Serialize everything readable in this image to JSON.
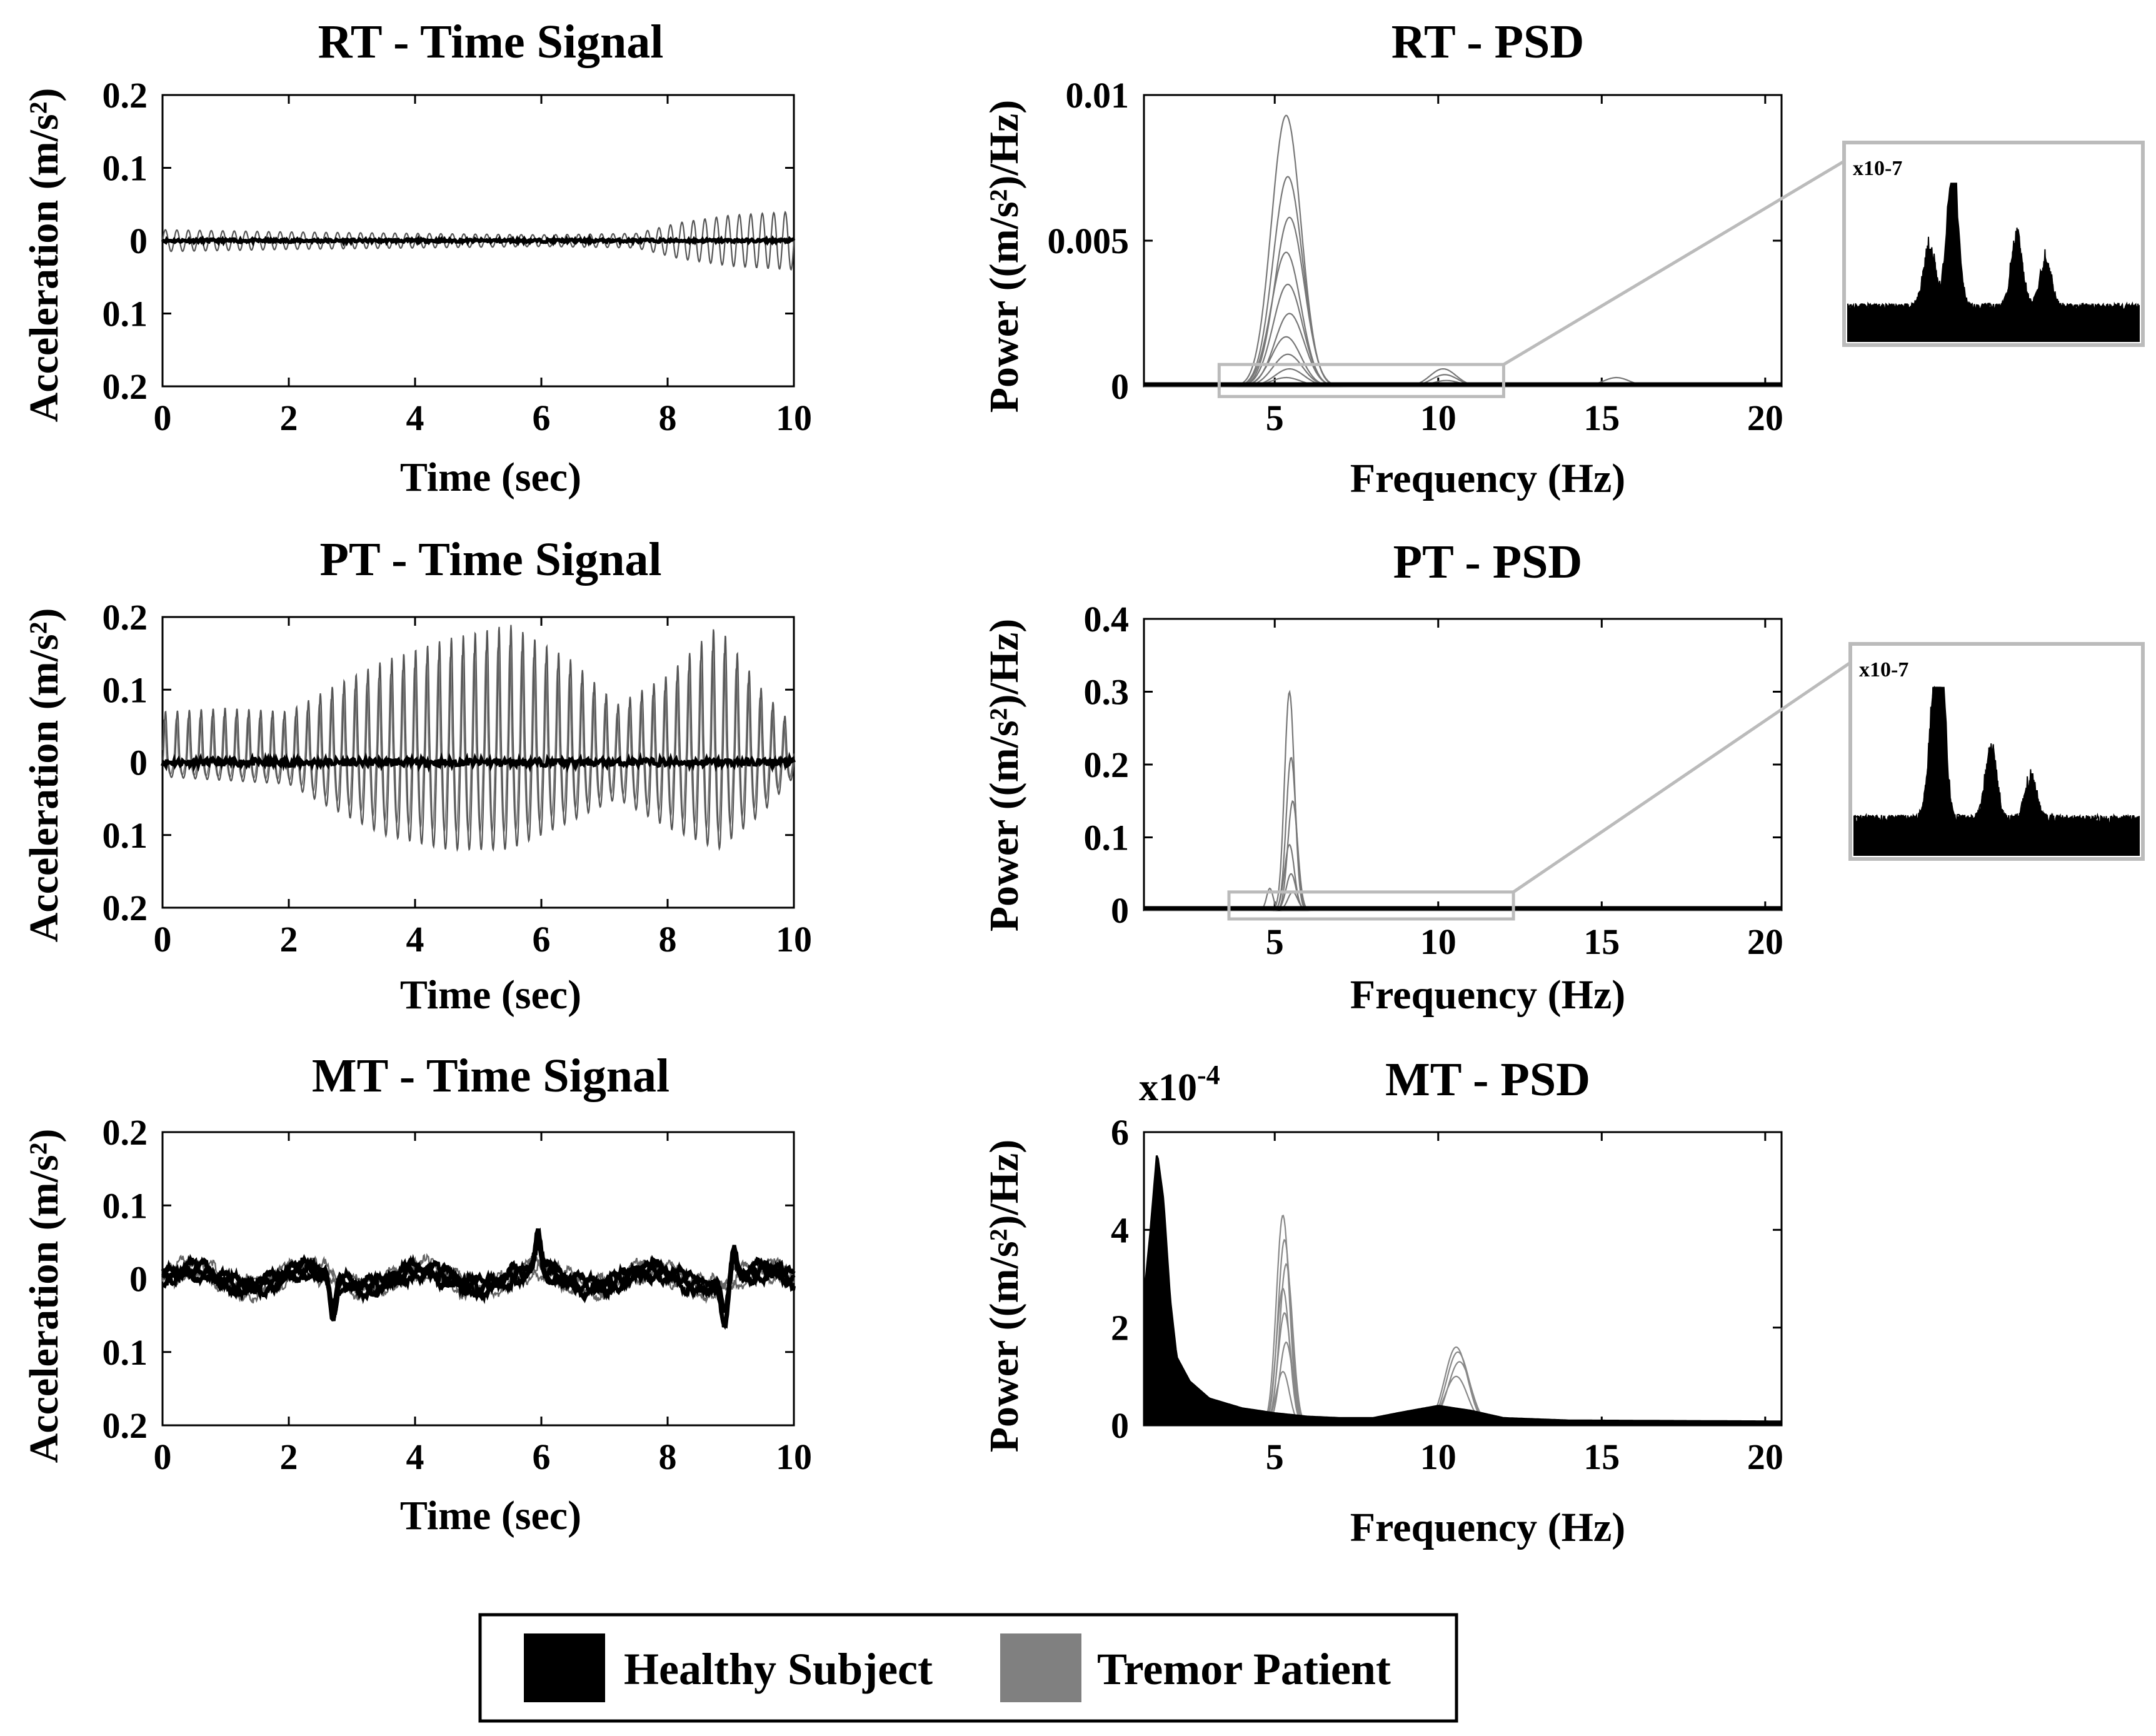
{
  "chart_data": [
    {
      "id": "rt_time",
      "type": "line",
      "title": "RT - Time Signal",
      "xlabel": "Time (sec)",
      "ylabel": "Acceleration (m/s²)",
      "xlim": [
        0,
        10
      ],
      "ylim": [
        -0.2,
        0.2
      ],
      "xticks": [
        0,
        2,
        4,
        6,
        8,
        10
      ],
      "xtick_labels": [
        "0",
        "2",
        "4",
        "6",
        "8",
        "10"
      ],
      "yticks": [
        0.2,
        0.1,
        0,
        -0.1,
        -0.2
      ],
      "ytick_labels": [
        "0.2",
        "0.1",
        "0",
        "0.1",
        "0.2"
      ],
      "series": [
        {
          "name": "Tremor Patient",
          "color": "#555555",
          "shape": "sine",
          "freq_hz": 5.5,
          "envelope_t": [
            0,
            2,
            4,
            6,
            7.5,
            8.2,
            9,
            10
          ],
          "envelope_amp": [
            0.015,
            0.012,
            0.01,
            0.008,
            0.01,
            0.025,
            0.035,
            0.04
          ]
        },
        {
          "name": "Healthy Subject",
          "color": "#000000",
          "shape": "flat",
          "amp": 0.002
        }
      ]
    },
    {
      "id": "rt_psd",
      "type": "line",
      "title": "RT - PSD",
      "xlabel": "Frequency (Hz)",
      "ylabel": "Power ((m/s²)/Hz)",
      "xlim": [
        1,
        20.5
      ],
      "ylim": [
        0,
        0.01
      ],
      "xticks": [
        5,
        10,
        15,
        20
      ],
      "xtick_labels": [
        "5",
        "10",
        "15",
        "20"
      ],
      "yticks": [
        0.01,
        0.005,
        0
      ],
      "ytick_labels": [
        "0.01",
        "0.005",
        "0"
      ],
      "series": [
        {
          "name": "Tremor Patient",
          "color": "#777777",
          "shape": "peaks",
          "peaks": [
            {
              "f": 5.4,
              "w": 0.45,
              "amps": [
                0.0093,
                0.0072,
                0.0058,
                0.0046,
                0.0035,
                0.0025,
                0.0017,
                0.0011,
                0.0006,
                0.0003
              ]
            },
            {
              "f": 10.2,
              "w": 0.4,
              "amps": [
                0.0006,
                0.0004,
                0.0002
              ]
            },
            {
              "f": 15.5,
              "w": 0.4,
              "amps": [
                0.0003
              ]
            }
          ]
        },
        {
          "name": "Healthy Subject",
          "color": "#000000",
          "shape": "baseline"
        }
      ],
      "zoom_box": {
        "x": [
          3.3,
          12
        ],
        "y": [
          -0.00035,
          0.00075
        ]
      },
      "inset": {
        "multiplier": "x10-7"
      }
    },
    {
      "id": "pt_time",
      "type": "line",
      "title": "PT - Time Signal",
      "xlabel": "Time (sec)",
      "ylabel": "Acceleration (m/s²)",
      "xlim": [
        0,
        10
      ],
      "ylim": [
        -0.2,
        0.2
      ],
      "xticks": [
        0,
        2,
        4,
        6,
        8,
        10
      ],
      "xtick_labels": [
        "0",
        "2",
        "4",
        "6",
        "8",
        "10"
      ],
      "yticks": [
        0.2,
        0.1,
        0,
        -0.1,
        -0.2
      ],
      "ytick_labels": [
        "0.2",
        "0.1",
        "0",
        "0.1",
        "0.2"
      ],
      "series": [
        {
          "name": "Tremor Patient",
          "color": "#555555",
          "shape": "spiky",
          "freq_hz": 5.3,
          "envelope_t": [
            0,
            1,
            2,
            2.6,
            3.5,
            4.5,
            5.5,
            6.5,
            7.2,
            8,
            8.8,
            9.5,
            10
          ],
          "envelope_pos": [
            0.07,
            0.075,
            0.07,
            0.1,
            0.14,
            0.17,
            0.19,
            0.14,
            0.08,
            0.12,
            0.19,
            0.1,
            0.05
          ],
          "envelope_neg": [
            0.02,
            0.025,
            0.03,
            0.06,
            0.1,
            0.12,
            0.12,
            0.08,
            0.05,
            0.09,
            0.12,
            0.07,
            0.02
          ]
        },
        {
          "name": "Healthy Subject",
          "color": "#000000",
          "shape": "flat",
          "amp": 0.005
        }
      ]
    },
    {
      "id": "pt_psd",
      "type": "line",
      "title": "PT - PSD",
      "xlabel": "Frequency (Hz)",
      "ylabel": "Power ((m/s²)/Hz)",
      "xlim": [
        1,
        20.5
      ],
      "ylim": [
        0,
        0.4
      ],
      "xticks": [
        5,
        10,
        15,
        20
      ],
      "xtick_labels": [
        "5",
        "10",
        "15",
        "20"
      ],
      "yticks": [
        0.4,
        0.3,
        0.2,
        0.1,
        0
      ],
      "ytick_labels": [
        "0.4",
        "0.3",
        "0.2",
        "0.1",
        "0"
      ],
      "series": [
        {
          "name": "Tremor Patient",
          "color": "#777777",
          "shape": "peaks",
          "peaks": [
            {
              "f": 5.5,
              "w": 0.15,
              "amps": [
                0.3,
                0.21,
                0.15,
                0.09,
                0.05,
                0.025
              ]
            },
            {
              "f": 4.9,
              "w": 0.1,
              "amps": [
                0.03
              ]
            }
          ]
        },
        {
          "name": "Healthy Subject",
          "color": "#000000",
          "shape": "baseline"
        }
      ],
      "zoom_box": {
        "x": [
          3.6,
          12.3
        ],
        "y": [
          -0.012,
          0.025
        ]
      },
      "inset": {
        "multiplier": "x10-7"
      }
    },
    {
      "id": "mt_time",
      "type": "line",
      "title": "MT - Time Signal",
      "xlabel": "Time (sec)",
      "ylabel": "Acceleration (m/s²)",
      "xlim": [
        0,
        10
      ],
      "ylim": [
        -0.2,
        0.2
      ],
      "xticks": [
        0,
        2,
        4,
        6,
        8,
        10
      ],
      "xtick_labels": [
        "0",
        "2",
        "4",
        "6",
        "8",
        "10"
      ],
      "yticks": [
        0.2,
        0.1,
        0,
        -0.1,
        -0.2
      ],
      "ytick_labels": [
        "0.2",
        "0.1",
        "0",
        "0.1",
        "0.2"
      ],
      "series": [
        {
          "name": "Tremor Patient",
          "color": "#666666",
          "shape": "wander",
          "amp": 0.03,
          "seed": 7
        },
        {
          "name": "Healthy Subject",
          "color": "#000000",
          "shape": "wander",
          "amp": 0.025,
          "seed": 3,
          "spikes": [
            [
              2.7,
              -0.05
            ],
            [
              5.95,
              0.045
            ],
            [
              8.9,
              -0.05
            ],
            [
              9.05,
              0.035
            ]
          ]
        }
      ]
    },
    {
      "id": "mt_psd",
      "type": "line",
      "title": "MT - PSD",
      "xlabel": "Frequency (Hz)",
      "ylabel": "Power ((m/s²)/Hz)",
      "multiplier": "x10",
      "multiplier_exp": "-4",
      "xlim": [
        1,
        20.5
      ],
      "ylim": [
        0,
        6
      ],
      "xticks": [
        5,
        10,
        15,
        20
      ],
      "xtick_labels": [
        "5",
        "10",
        "15",
        "20"
      ],
      "yticks": [
        6,
        4,
        2,
        0
      ],
      "ytick_labels": [
        "6",
        "4",
        "2",
        "0"
      ],
      "series": [
        {
          "name": "Tremor Patient",
          "color": "#888888",
          "shape": "peaks",
          "peaks": [
            {
              "f": 5.3,
              "w": 0.2,
              "amps": [
                4.3,
                3.8,
                3.3,
                2.8,
                2.3,
                1.7,
                1.1
              ]
            },
            {
              "f": 10.6,
              "w": 0.35,
              "amps": [
                1.6,
                1.5,
                1.3,
                1.0
              ]
            }
          ]
        },
        {
          "name": "Healthy Subject",
          "color": "#000000",
          "shape": "lowfreq",
          "points_f": [
            1,
            1.2,
            1.4,
            1.6,
            1.8,
            2.0,
            2.4,
            3,
            4,
            5,
            6,
            7,
            8,
            9,
            10,
            11,
            12,
            14,
            20.5
          ],
          "points_p": [
            2.6,
            4.0,
            5.6,
            4.6,
            2.6,
            1.4,
            0.9,
            0.55,
            0.35,
            0.25,
            0.18,
            0.15,
            0.15,
            0.28,
            0.4,
            0.3,
            0.15,
            0.1,
            0.08
          ]
        }
      ]
    }
  ],
  "legend": [
    {
      "label": "Healthy Subject",
      "color": "#000000"
    },
    {
      "label": "Tremor Patient",
      "color": "#808080"
    }
  ]
}
